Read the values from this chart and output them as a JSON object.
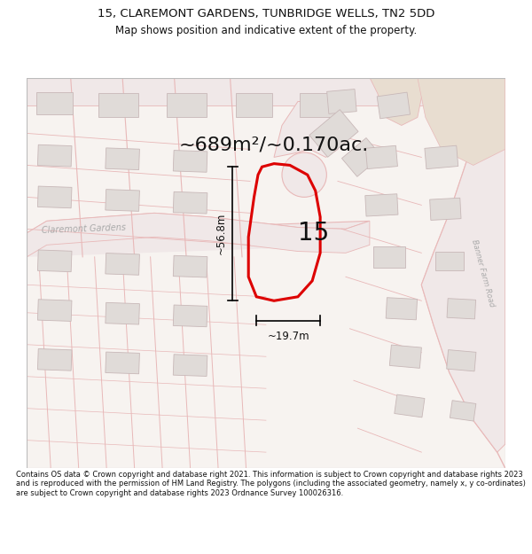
{
  "title_line1": "15, CLAREMONT GARDENS, TUNBRIDGE WELLS, TN2 5DD",
  "title_line2": "Map shows position and indicative extent of the property.",
  "area_label": "~689m²/~0.170ac.",
  "property_number": "15",
  "dim_height": "~56.8m",
  "dim_width": "~19.7m",
  "road_label_left": "Claremont Gardens",
  "road_label_right": "Banner Farm Road",
  "footer_text": "Contains OS data © Crown copyright and database right 2021. This information is subject to Crown copyright and database rights 2023 and is reproduced with the permission of HM Land Registry. The polygons (including the associated geometry, namely x, y co-ordinates) are subject to Crown copyright and database rights 2023 Ordnance Survey 100026316.",
  "map_bg": "#f7f3f0",
  "road_color": "#e8b8b8",
  "road_fill": "#f0e8e8",
  "plot_outline_color": "#dd0000",
  "text_color": "#111111",
  "building_fill": "#e0dbd8",
  "building_edge": "#c8b8b8",
  "tan_fill": "#e8ddd0",
  "fig_width": 6.0,
  "fig_height": 6.25,
  "dpi": 100,
  "title_fontsize": 9.5,
  "subtitle_fontsize": 8.5,
  "area_fontsize": 16,
  "num_fontsize": 20,
  "dim_fontsize": 8.5,
  "footer_fontsize": 6.0
}
